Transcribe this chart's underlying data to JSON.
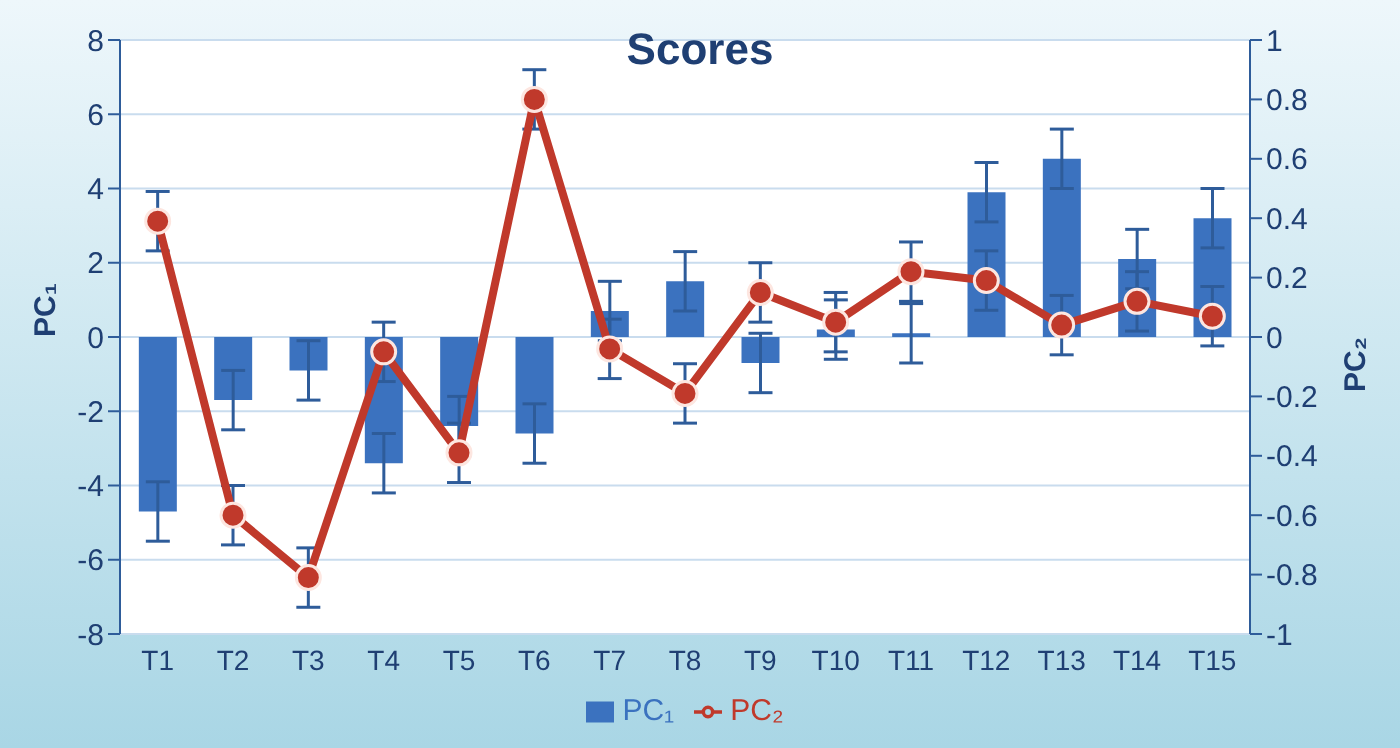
{
  "chart_data": {
    "type": "bar",
    "title": "Scores",
    "ylabel": "PC₁",
    "y2label": "PC₂",
    "categories": [
      "T1",
      "T2",
      "T3",
      "T4",
      "T5",
      "T6",
      "T7",
      "T8",
      "T9",
      "T10",
      "T11",
      "T12",
      "T13",
      "T14",
      "T15"
    ],
    "series": [
      {
        "name": "PC₁",
        "color": "#3b72bf",
        "values": [
          -4.7,
          -1.7,
          -0.9,
          -3.4,
          -2.4,
          -2.6,
          0.7,
          1.5,
          -0.7,
          0.2,
          0.1,
          3.9,
          4.8,
          2.1,
          3.2
        ],
        "errors": [
          0.8,
          0.8,
          0.8,
          0.8,
          0.8,
          0.8,
          0.8,
          0.8,
          0.8,
          0.8,
          0.8,
          0.8,
          0.8,
          0.8,
          0.8
        ]
      },
      {
        "name": "PC₂",
        "type": "line",
        "axis": "y2",
        "color": "#c0392b",
        "marker": "circle",
        "values": [
          0.39,
          -0.6,
          -0.81,
          -0.05,
          -0.39,
          0.8,
          -0.04,
          -0.19,
          0.15,
          0.05,
          0.22,
          0.19,
          0.04,
          0.12,
          0.07
        ],
        "errors": [
          0.1,
          0.1,
          0.1,
          0.1,
          0.1,
          0.1,
          0.1,
          0.1,
          0.1,
          0.1,
          0.1,
          0.1,
          0.1,
          0.1,
          0.1
        ]
      }
    ],
    "ylim": [
      -8,
      8
    ],
    "yticks": [
      -8,
      -6,
      -4,
      -2,
      0,
      2,
      4,
      6,
      8
    ],
    "y2lim": [
      -1,
      1
    ],
    "y2ticks": [
      -1,
      -0.8,
      -0.6,
      -0.4,
      -0.2,
      0,
      0.2,
      0.4,
      0.6,
      0.8,
      1
    ],
    "grid": "y",
    "legend": "bottom"
  }
}
